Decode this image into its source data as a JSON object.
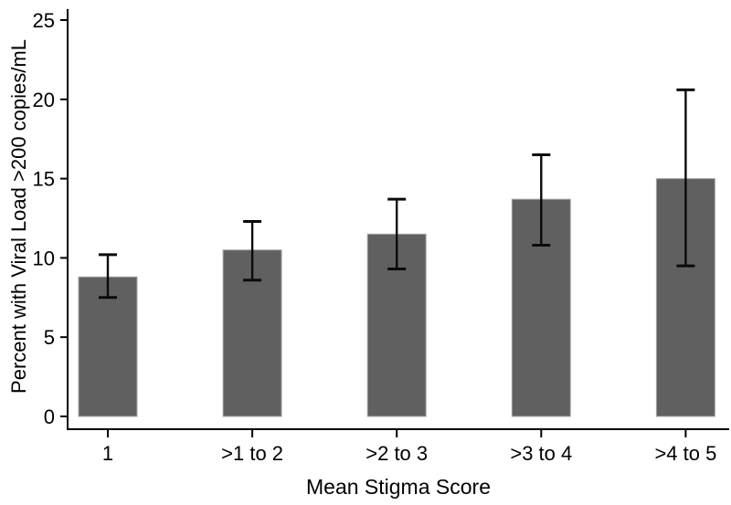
{
  "figure": {
    "background": "#ffffff",
    "bar_color": "#606060",
    "bar_border_color": "#a8a8a8",
    "error_bar_color": "#0a0a0a",
    "axis_color": "#000000",
    "text_color": "#000000"
  },
  "chart_data": {
    "type": "bar",
    "title": "",
    "xlabel": "Mean Stigma Score",
    "ylabel": "Percent with Viral Load >200 copies/mL",
    "categories": [
      "1",
      ">1 to 2",
      ">2 to 3",
      ">3 to 4",
      ">4 to 5"
    ],
    "values": [
      8.8,
      10.5,
      11.5,
      13.7,
      15.0
    ],
    "error_low": [
      7.5,
      8.6,
      9.3,
      10.8,
      9.5
    ],
    "error_high": [
      10.2,
      12.3,
      13.7,
      16.5,
      20.6
    ],
    "ylim": [
      0,
      25
    ],
    "yticks": [
      0,
      5,
      10,
      15,
      20,
      25
    ],
    "grid": false,
    "legend": null
  }
}
